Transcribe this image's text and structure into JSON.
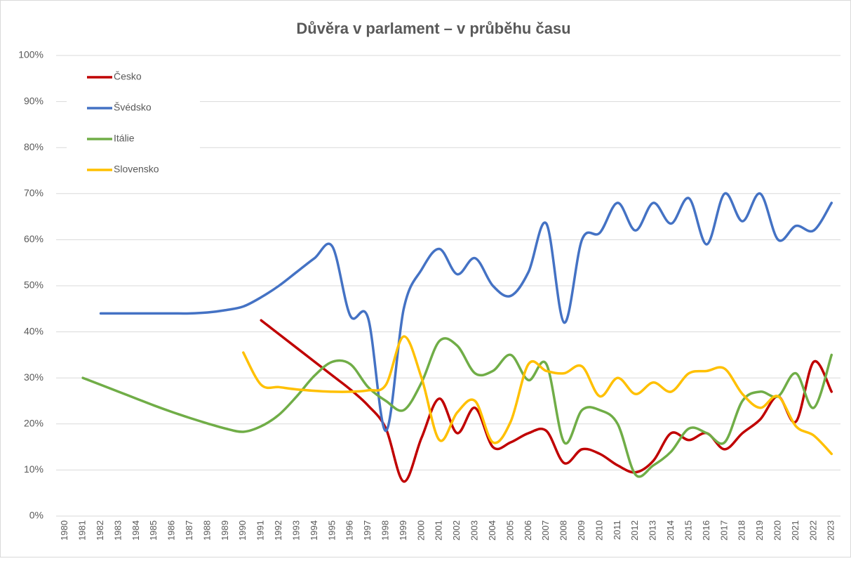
{
  "chart_data": {
    "type": "line",
    "title": "Důvěra v parlament – v průběhu času",
    "categories": [
      "1980",
      "1981",
      "1982",
      "1983",
      "1984",
      "1985",
      "1986",
      "1987",
      "1988",
      "1989",
      "1990",
      "1991",
      "1992",
      "1993",
      "1994",
      "1995",
      "1996",
      "1997",
      "1998",
      "1999",
      "2000",
      "2001",
      "2002",
      "2003",
      "2004",
      "2005",
      "2006",
      "2007",
      "2008",
      "2009",
      "2010",
      "2011",
      "2012",
      "2013",
      "2014",
      "2015",
      "2016",
      "2017",
      "2018",
      "2019",
      "2020",
      "2021",
      "2022",
      "2023"
    ],
    "series": [
      {
        "name": "Česko",
        "color": "#c00000",
        "values": [
          null,
          null,
          null,
          null,
          null,
          null,
          null,
          null,
          null,
          null,
          null,
          42.5,
          39.5,
          36.5,
          33.5,
          30.5,
          27.5,
          24,
          19,
          7.5,
          17,
          25.5,
          18,
          23.5,
          15,
          16,
          18,
          18.5,
          11.5,
          14.5,
          13.5,
          11,
          9.5,
          12,
          18,
          16.5,
          18,
          14.5,
          18,
          21,
          26,
          20.5,
          33.5,
          27
        ]
      },
      {
        "name": "Švédsko",
        "color": "#4472c4",
        "values": [
          null,
          null,
          44,
          44,
          44,
          44,
          44,
          44,
          44.2,
          44.7,
          45.5,
          47.5,
          50,
          53,
          56,
          58.5,
          43.5,
          43,
          18.5,
          45,
          53.5,
          58,
          52.5,
          56,
          50,
          47.8,
          53,
          63.5,
          42,
          60,
          61.5,
          68,
          62,
          68,
          63.5,
          69,
          59,
          70,
          64,
          70,
          60,
          63,
          62,
          68
        ]
      },
      {
        "name": "Itálie",
        "color": "#70ad47",
        "values": [
          null,
          30,
          28.5,
          27,
          25.5,
          24,
          22.6,
          21.3,
          20.1,
          19,
          18.3,
          19.5,
          22,
          26,
          30.5,
          33.5,
          33,
          28,
          25,
          23,
          29,
          38,
          37,
          31,
          31.5,
          35,
          29.5,
          33,
          16,
          23,
          23,
          20,
          9,
          11,
          14,
          19,
          18,
          16,
          25,
          27,
          26,
          31,
          23.5,
          35
        ]
      },
      {
        "name": "Slovensko",
        "color": "#ffc000",
        "values": [
          null,
          null,
          null,
          null,
          null,
          null,
          null,
          null,
          null,
          null,
          35.5,
          28.5,
          28,
          27.5,
          27.2,
          27,
          27,
          27.3,
          28.5,
          39,
          30,
          16.5,
          22.5,
          25,
          16,
          20.5,
          33,
          31.5,
          31,
          32.5,
          26,
          30,
          26.5,
          29,
          27,
          31,
          31.5,
          32,
          26.5,
          23.5,
          26,
          19.5,
          17.5,
          13.5
        ]
      }
    ],
    "ylim": [
      0,
      100
    ],
    "yticks": [
      {
        "value": 0,
        "label": "0%"
      },
      {
        "value": 10,
        "label": "10%"
      },
      {
        "value": 20,
        "label": "20%"
      },
      {
        "value": 30,
        "label": "30%"
      },
      {
        "value": 40,
        "label": "40%"
      },
      {
        "value": 50,
        "label": "50%"
      },
      {
        "value": 60,
        "label": "60%"
      },
      {
        "value": 70,
        "label": "70%"
      },
      {
        "value": 80,
        "label": "80%"
      },
      {
        "value": 90,
        "label": "90%"
      },
      {
        "value": 100,
        "label": "100%"
      }
    ],
    "grid": true,
    "legend": "top-left",
    "smooth": true
  }
}
